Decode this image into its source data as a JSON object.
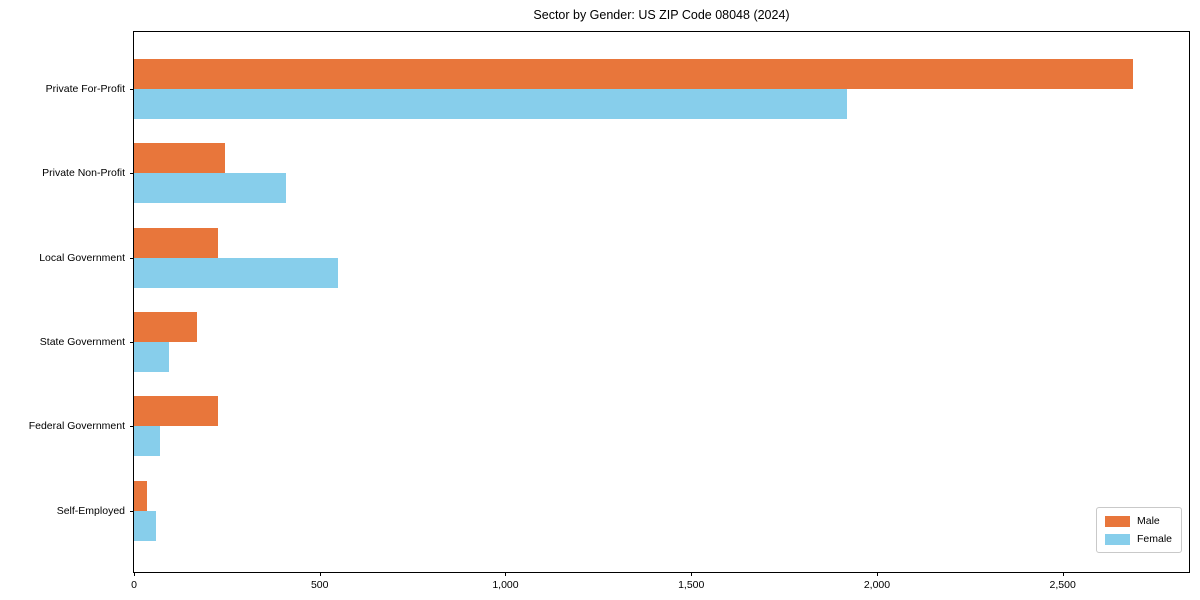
{
  "chart_data": {
    "type": "bar",
    "orientation": "horizontal",
    "title": "Sector by Gender: US ZIP Code 08048 (2024)",
    "categories": [
      "Private For-Profit",
      "Private Non-Profit",
      "Local Government",
      "State Government",
      "Federal Government",
      "Self-Employed"
    ],
    "series": [
      {
        "name": "Male",
        "color": "#e8763b",
        "values": [
          2690,
          245,
          225,
          170,
          225,
          35
        ]
      },
      {
        "name": "Female",
        "color": "#87ceeb",
        "values": [
          1920,
          410,
          550,
          95,
          70,
          60
        ]
      }
    ],
    "xlabel": "",
    "ylabel": "",
    "xlim": [
      0,
      2840
    ],
    "xticks": [
      0,
      500,
      1000,
      1500,
      2000,
      2500
    ],
    "xtick_labels": [
      "0",
      "500",
      "1,000",
      "1,500",
      "2,000",
      "2,500"
    ],
    "grid": false,
    "legend": {
      "position": "lower right",
      "entries": [
        "Male",
        "Female"
      ]
    }
  }
}
